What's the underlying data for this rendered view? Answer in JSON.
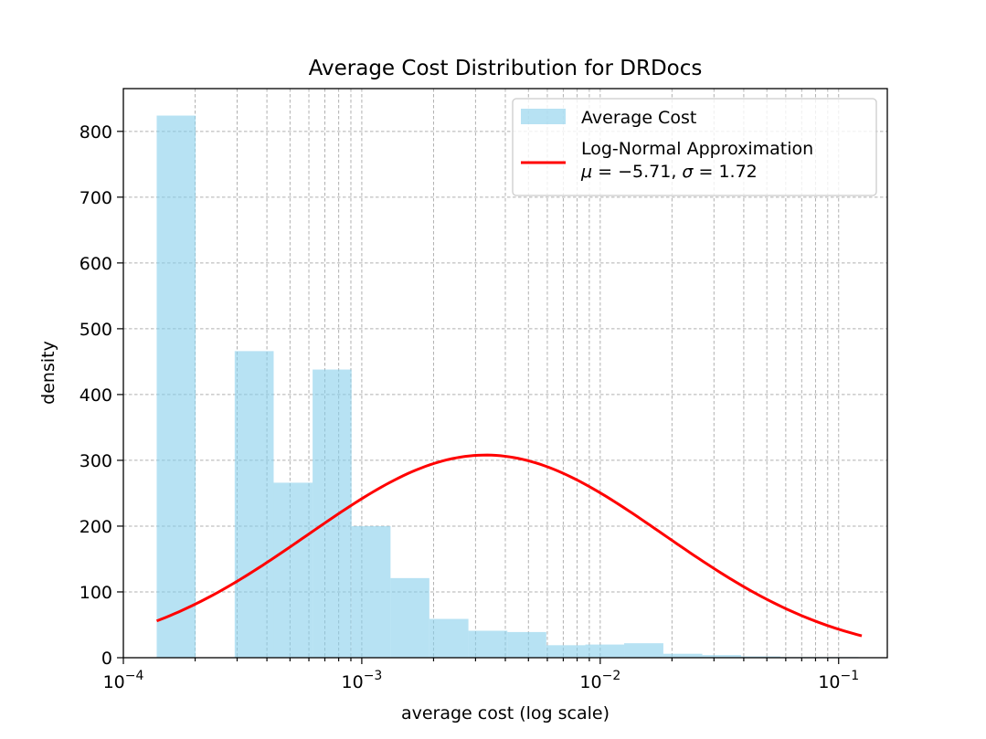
{
  "chart_data": {
    "type": "bar",
    "title": "Average Cost Distribution for DRDocs",
    "xlabel": "average cost (log scale)",
    "ylabel": "density",
    "xscale": "log",
    "xlim": [
      0.0001,
      0.16
    ],
    "ylim": [
      0,
      865
    ],
    "grid": true,
    "legend_position": "top-right",
    "x_ticks": [
      {
        "value": 0.0001,
        "base": "10",
        "exp": "−4"
      },
      {
        "value": 0.001,
        "base": "10",
        "exp": "−3"
      },
      {
        "value": 0.01,
        "base": "10",
        "exp": "−2"
      },
      {
        "value": 0.1,
        "base": "10",
        "exp": "−1"
      }
    ],
    "y_ticks": [
      0,
      100,
      200,
      300,
      400,
      500,
      600,
      700,
      800
    ],
    "series": [
      {
        "name": "Average Cost",
        "kind": "histogram",
        "color": "#87ceeb",
        "bins": [
          {
            "x0": 0.000138,
            "x1": 0.000201,
            "value": 824
          },
          {
            "x0": 0.000201,
            "x1": 0.000293,
            "value": 0
          },
          {
            "x0": 0.000293,
            "x1": 0.000427,
            "value": 466
          },
          {
            "x0": 0.000427,
            "x1": 0.000622,
            "value": 266
          },
          {
            "x0": 0.000622,
            "x1": 0.000906,
            "value": 438
          },
          {
            "x0": 0.000906,
            "x1": 0.00132,
            "value": 200
          },
          {
            "x0": 0.00132,
            "x1": 0.00192,
            "value": 121
          },
          {
            "x0": 0.00192,
            "x1": 0.0028,
            "value": 59
          },
          {
            "x0": 0.0028,
            "x1": 0.00408,
            "value": 41
          },
          {
            "x0": 0.00408,
            "x1": 0.00594,
            "value": 39
          },
          {
            "x0": 0.00594,
            "x1": 0.00866,
            "value": 19
          },
          {
            "x0": 0.00866,
            "x1": 0.0126,
            "value": 20
          },
          {
            "x0": 0.0126,
            "x1": 0.0184,
            "value": 22
          },
          {
            "x0": 0.0184,
            "x1": 0.0268,
            "value": 6
          },
          {
            "x0": 0.0268,
            "x1": 0.039,
            "value": 4
          },
          {
            "x0": 0.039,
            "x1": 0.0569,
            "value": 2
          },
          {
            "x0": 0.0569,
            "x1": 0.0829,
            "value": 1
          },
          {
            "x0": 0.0829,
            "x1": 0.121,
            "value": 1
          }
        ]
      },
      {
        "name": "Log-Normal Approximation",
        "label_line2_parts": [
          "μ",
          " = −5.71, ",
          "σ",
          " = 1.72"
        ],
        "kind": "line",
        "color": "#ff0000",
        "mu": -5.71,
        "sigma": 1.72,
        "x_range": [
          0.000138,
          0.125
        ],
        "samples": 160,
        "peak_value": 308
      }
    ]
  }
}
